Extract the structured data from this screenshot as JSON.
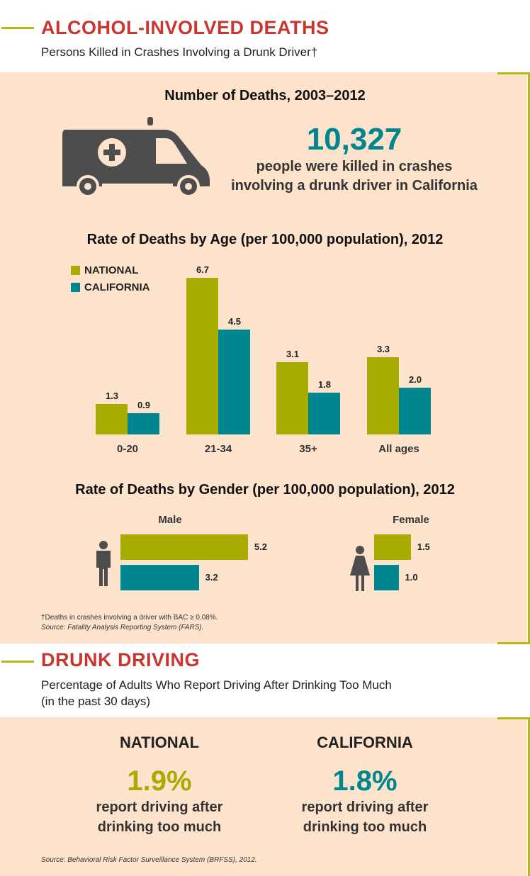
{
  "colors": {
    "title": "#c8362e",
    "national": "#a8ab00",
    "california": "#00868f",
    "panel": "#fde3cc"
  },
  "section1": {
    "title": "ALCOHOL-INVOLVED DEATHS",
    "subtitle": "Persons Killed in Crashes Involving a Drunk Driver†"
  },
  "deaths": {
    "heading": "Number of Deaths, 2003–2012",
    "icon": "ambulance-icon",
    "number": "10,327",
    "line1": "people were killed in crashes",
    "line2": "involving a drunk driver in California"
  },
  "chart_data": [
    {
      "type": "bar",
      "title": "Rate of Deaths by Age (per 100,000 population), 2012",
      "categories": [
        "0-20",
        "21-34",
        "35+",
        "All ages"
      ],
      "series": [
        {
          "name": "NATIONAL",
          "values": [
            1.3,
            6.7,
            3.1,
            3.3
          ]
        },
        {
          "name": "CALIFORNIA",
          "values": [
            0.9,
            4.5,
            1.8,
            2.0
          ]
        }
      ],
      "legend": "top-left",
      "grid": false
    },
    {
      "type": "bar",
      "orientation": "horizontal",
      "title": "Rate of Deaths by Gender (per 100,000 population), 2012",
      "categories": [
        "Male",
        "Female"
      ],
      "series": [
        {
          "name": "NATIONAL",
          "values": [
            5.2,
            1.5
          ]
        },
        {
          "name": "CALIFORNIA",
          "values": [
            3.2,
            1.0
          ]
        }
      ],
      "grid": false
    }
  ],
  "footnote": {
    "note": "†Deaths in crashes involving a driver with BAC ≥ 0.08%.",
    "source": "Source: Fatality Analysis Reporting System (FARS)."
  },
  "section2": {
    "title": "DRUNK DRIVING",
    "subtitle1": "Percentage of Adults Who Report Driving After Drinking Too Much",
    "subtitle2": "(in the past 30 days)"
  },
  "drunk": {
    "national": {
      "label": "NATIONAL",
      "value": "1.9%",
      "line1": "report driving after",
      "line2": "drinking too much"
    },
    "california": {
      "label": "CALIFORNIA",
      "value": "1.8%",
      "line1": "report driving after",
      "line2": "drinking too much"
    },
    "source": "Source: Behavioral Risk Factor Surveillance System (BRFSS), 2012."
  }
}
